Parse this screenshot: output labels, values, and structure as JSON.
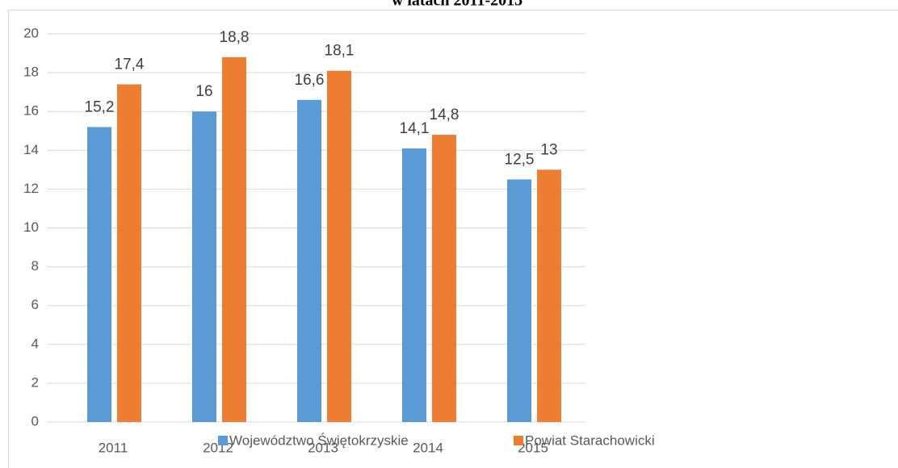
{
  "chart_data": {
    "type": "bar",
    "title": "w latach 2011-2015",
    "categories": [
      "2011",
      "2012",
      "2013",
      "2014",
      "2015"
    ],
    "series": [
      {
        "name": "Województwo Świętokrzyskie",
        "color": "#5b9bd5",
        "values": [
          15.2,
          16,
          16.6,
          14.1,
          12.5
        ],
        "value_labels": [
          "15,2",
          "16",
          "16,6",
          "14,1",
          "12,5"
        ]
      },
      {
        "name": "Powiat Starachowicki",
        "color": "#ed7d31",
        "values": [
          17.4,
          18.8,
          18.1,
          14.8,
          13
        ],
        "value_labels": [
          "17,4",
          "18,8",
          "18,1",
          "14,8",
          "13"
        ]
      }
    ],
    "ylim": [
      0,
      20
    ],
    "yticks": [
      0,
      2,
      4,
      6,
      8,
      10,
      12,
      14,
      16,
      18,
      20
    ],
    "grid": true,
    "legend": "bottom"
  }
}
